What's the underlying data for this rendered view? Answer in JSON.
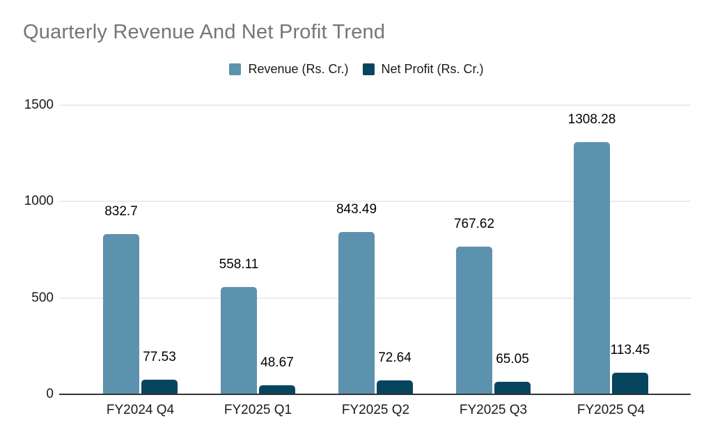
{
  "title": "Quarterly Revenue And Net Profit Trend",
  "legend": {
    "position": "top",
    "items": [
      {
        "label": "Revenue (Rs. Cr.)",
        "color": "#5d92ae"
      },
      {
        "label": "Net Profit (Rs. Cr.)",
        "color": "#07455f"
      }
    ]
  },
  "chart_data": {
    "type": "bar",
    "title": "Quarterly Revenue And Net Profit Trend",
    "categories": [
      "FY2024 Q4",
      "FY2025 Q1",
      "FY2025 Q2",
      "FY2025 Q3",
      "FY2025 Q4"
    ],
    "series": [
      {
        "name": "Revenue (Rs. Cr.)",
        "color": "#5d92ae",
        "values": [
          832.7,
          558.11,
          843.49,
          767.62,
          1308.28
        ]
      },
      {
        "name": "Net Profit (Rs. Cr.)",
        "color": "#07455f",
        "values": [
          77.53,
          48.67,
          72.64,
          65.05,
          113.45
        ]
      }
    ],
    "data_labels": [
      [
        "832.7",
        "558.11",
        "843.49",
        "767.62",
        "1308.28"
      ],
      [
        "77.53",
        "48.67",
        "72.64",
        "65.05",
        "113.45"
      ]
    ],
    "xlabel": "",
    "ylabel": "",
    "ylim": [
      0,
      1500
    ],
    "yticks": [
      0,
      500,
      1000,
      1500
    ],
    "grid": true,
    "legend_position": "top"
  },
  "colors": {
    "background": "#ffffff",
    "title_text": "#757575",
    "gridline": "#d9d9d9",
    "axis_line": "#333333",
    "label_text": "#1a1a1a"
  }
}
